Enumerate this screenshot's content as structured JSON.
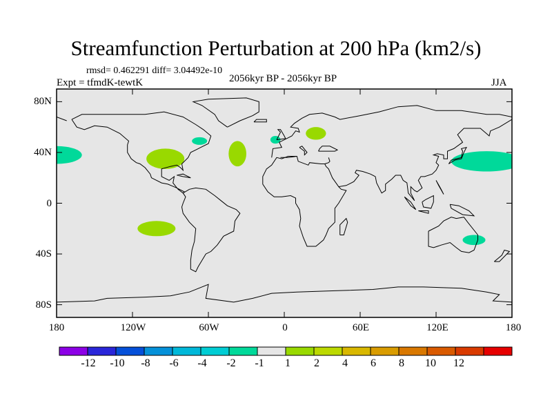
{
  "title": "Streamfunction Perturbation at 200 hPa (km2/s)",
  "stats": "rmsd= 0.462291 diff= 3.04492e-10",
  "period": "2056kyr BP - 2056kyr BP",
  "experiment": "Expt = tfmdK-tewtK",
  "season": "JJA",
  "map": {
    "projection": "cylindrical equidistant",
    "lon_range": [
      -180,
      180
    ],
    "lat_range": [
      -90,
      90
    ],
    "land_ocean_fill": "#e6e6e6",
    "y_ticks": [
      {
        "label": "80N",
        "lat": 80
      },
      {
        "label": "40N",
        "lat": 40
      },
      {
        "label": "0",
        "lat": 0
      },
      {
        "label": "40S",
        "lat": -40
      },
      {
        "label": "80S",
        "lat": -80
      }
    ],
    "x_ticks": [
      {
        "label": "180",
        "lon": -180
      },
      {
        "label": "120W",
        "lon": -120
      },
      {
        "label": "60W",
        "lon": -60
      },
      {
        "label": "0",
        "lon": 0
      },
      {
        "label": "60E",
        "lon": 60
      },
      {
        "label": "120E",
        "lon": 120
      },
      {
        "label": "180",
        "lon": 180
      }
    ],
    "anomalies": [
      {
        "name": "north-pacific-east-negative",
        "sign": "negative",
        "lon": -180,
        "lat": 38,
        "rlon": 20,
        "rlat": 7,
        "color": "#00d99a"
      },
      {
        "name": "north-america-positive",
        "sign": "positive",
        "lon": -94,
        "lat": 35,
        "rlon": 15,
        "rlat": 8,
        "color": "#99d900"
      },
      {
        "name": "great-lakes-negative",
        "sign": "negative",
        "lon": -67,
        "lat": 49,
        "rlon": 6,
        "rlat": 3,
        "color": "#00d99a"
      },
      {
        "name": "north-atlantic-positive",
        "sign": "positive",
        "lon": -37,
        "lat": 39,
        "rlon": 7,
        "rlat": 10,
        "color": "#99d900"
      },
      {
        "name": "iberia-west-negative",
        "sign": "negative",
        "lon": -7,
        "lat": 50,
        "rlon": 4,
        "rlat": 3,
        "color": "#00d99a"
      },
      {
        "name": "europe-positive",
        "sign": "positive",
        "lon": 25,
        "lat": 55,
        "rlon": 8,
        "rlat": 5,
        "color": "#99d900"
      },
      {
        "name": "north-pacific-west-negative",
        "sign": "negative",
        "lon": 160,
        "lat": 33,
        "rlon": 28,
        "rlat": 8,
        "color": "#00d99a"
      },
      {
        "name": "south-pacific-positive",
        "sign": "positive",
        "lon": -101,
        "lat": -20,
        "rlon": 15,
        "rlat": 6,
        "color": "#99d900"
      },
      {
        "name": "east-australia-negative",
        "sign": "negative",
        "lon": 150,
        "lat": -29,
        "rlon": 9,
        "rlat": 4,
        "color": "#00d99a"
      }
    ]
  },
  "colorbar": {
    "colors": [
      "#8c00e6",
      "#2a26d9",
      "#0550d9",
      "#0591d9",
      "#00b8d9",
      "#00cdd4",
      "#00d99a",
      "#e6e6e6",
      "#99d900",
      "#bcd900",
      "#d9b800",
      "#d99c00",
      "#d97800",
      "#d95a00",
      "#d93a00",
      "#e60000"
    ],
    "labels": [
      "-12",
      "-10",
      "-8",
      "-6",
      "-4",
      "-2",
      "-1",
      "1",
      "2",
      "4",
      "6",
      "8",
      "10",
      "12"
    ]
  }
}
